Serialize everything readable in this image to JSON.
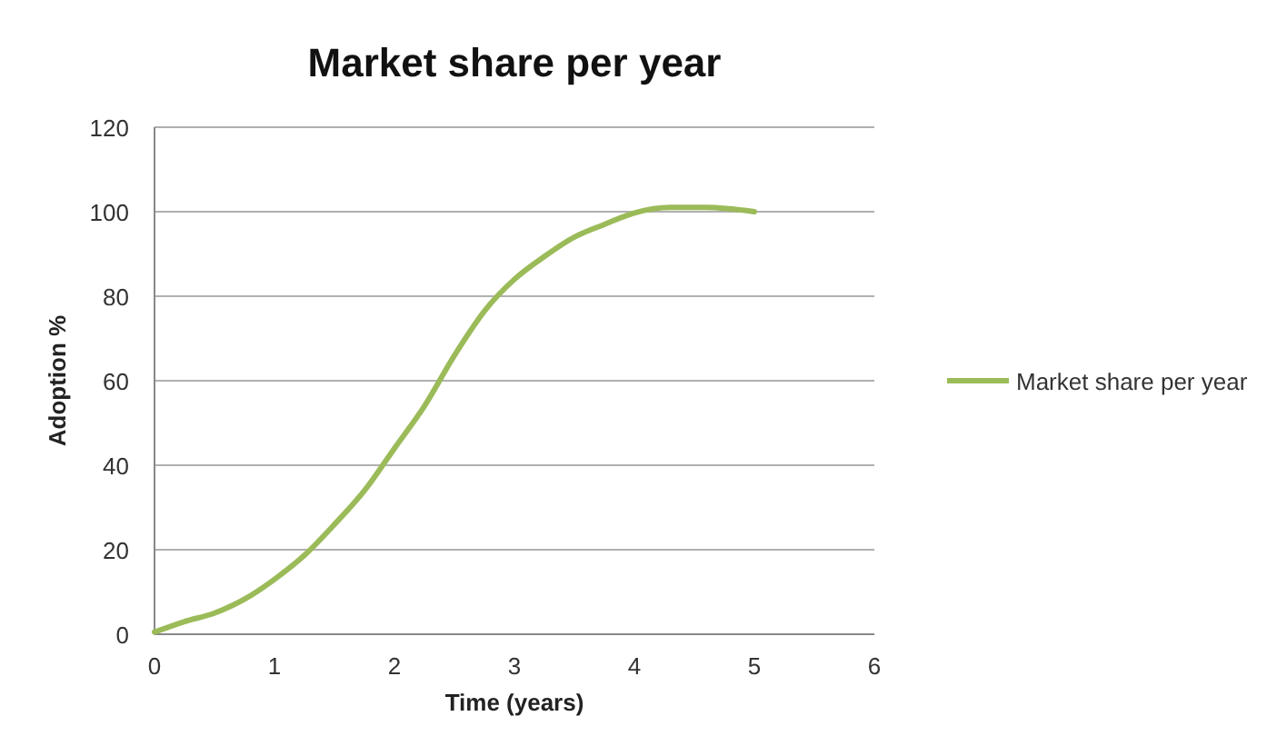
{
  "chart_data": {
    "type": "line",
    "title": "Market share per year",
    "xlabel": "Time (years)",
    "ylabel": "Adoption %",
    "series": [
      {
        "name": "Market share per year",
        "color": "#9bbb59",
        "x": [
          0,
          0.25,
          0.5,
          0.75,
          1,
          1.25,
          1.5,
          1.75,
          2,
          2.25,
          2.5,
          2.75,
          3,
          3.25,
          3.5,
          3.75,
          4,
          4.3,
          4.6,
          5
        ],
        "values": [
          0.5,
          3,
          5,
          8.3,
          13,
          18.7,
          26,
          34,
          44,
          54,
          66,
          76.5,
          84,
          89.4,
          94,
          97,
          99.7,
          101,
          101,
          100
        ]
      }
    ],
    "xlim": [
      0,
      6
    ],
    "xticks": [
      0,
      1,
      2,
      3,
      4,
      5,
      6
    ],
    "ylim": [
      0,
      120
    ],
    "yticks": [
      0,
      20,
      40,
      60,
      80,
      100,
      120
    ],
    "grid": "y",
    "legend": "right",
    "marker": "none",
    "line_style": "solid"
  }
}
